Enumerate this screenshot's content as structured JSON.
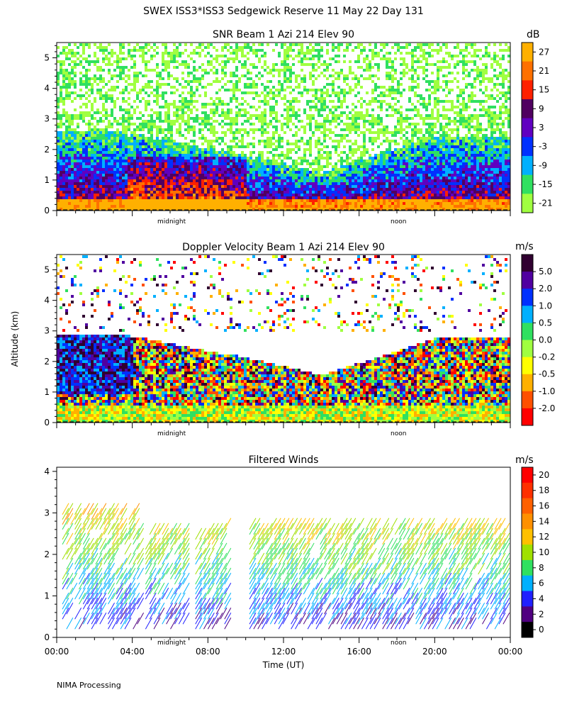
{
  "figure_title": "SWEX ISS3*ISS3 Sedgewick Reserve  11 May 22 Day 131",
  "footer_note": "NIMA Processing",
  "shared": {
    "ylabel": "Altitude (km)",
    "xlabel": "Time (UT)",
    "time_ticks": [
      "00:00",
      "04:00",
      "08:00",
      "12:00",
      "16:00",
      "20:00",
      "00:00"
    ],
    "markers": [
      "midnight",
      "noon"
    ]
  },
  "chart_data": [
    {
      "type": "heatmap",
      "title": "SNR Beam 1 Azi 214 Elev 90",
      "colorbar_unit": "dB",
      "colorbar_labels": [
        "27",
        "21",
        "15",
        "9",
        "3",
        "-3",
        "-9",
        "-15",
        "-21"
      ],
      "colorbar_colors": [
        "#ffb000",
        "#ff7000",
        "#ff2000",
        "#500060",
        "#6000c0",
        "#0030ff",
        "#00b0ff",
        "#30e060",
        "#a0ff40"
      ],
      "yticks": [
        "0",
        "1",
        "2",
        "3",
        "4",
        "5"
      ],
      "ylim": [
        0,
        5.5
      ],
      "xlim_hours": [
        0,
        24
      ]
    },
    {
      "type": "heatmap",
      "title": "Doppler Velocity Beam 1 Azi 214 Elev 90",
      "colorbar_unit": "m/s",
      "colorbar_labels": [
        "5.0",
        "2.0",
        "1.0",
        "0.5",
        "0.0",
        "-0.2",
        "-0.5",
        "-1.0",
        "-2.0"
      ],
      "colorbar_colors": [
        "#300030",
        "#5000a0",
        "#0030ff",
        "#00b0ff",
        "#30e060",
        "#a0ff40",
        "#ffff00",
        "#ffb000",
        "#ff5000",
        "#ff0000"
      ],
      "yticks": [
        "0",
        "1",
        "2",
        "3",
        "4",
        "5"
      ],
      "ylim": [
        0,
        5.5
      ],
      "xlim_hours": [
        0,
        24
      ]
    },
    {
      "type": "scatter",
      "title": "Filtered Winds",
      "colorbar_unit": "m/s",
      "colorbar_labels": [
        "20",
        "18",
        "16",
        "14",
        "12",
        "10",
        "8",
        "6",
        "4",
        "2",
        "0"
      ],
      "colorbar_colors": [
        "#ff0000",
        "#ff3000",
        "#ff6000",
        "#ff9000",
        "#ffc000",
        "#a0e000",
        "#30e060",
        "#00b0ff",
        "#2020ff",
        "#500080",
        "#000000"
      ],
      "yticks": [
        "0",
        "1",
        "2",
        "3",
        "4"
      ],
      "ylim": [
        0,
        4.1
      ],
      "xlim_hours": [
        0,
        24
      ]
    }
  ]
}
